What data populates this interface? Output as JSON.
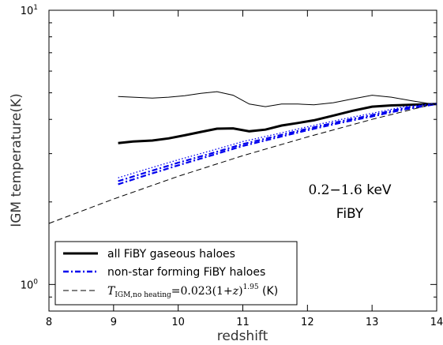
{
  "chart_data": {
    "type": "line",
    "xlabel": "redshift",
    "ylabel": "IGM temperature(K)",
    "xlim": [
      8,
      14
    ],
    "ylim": [
      0.8,
      10
    ],
    "yscale": "log",
    "x_ticks": [
      "8",
      "9",
      "10",
      "11",
      "12",
      "13",
      "14"
    ],
    "y_ticks": [
      {
        "value": 1,
        "base": "10",
        "exp": "0"
      },
      {
        "value": 10,
        "base": "10",
        "exp": "1"
      }
    ],
    "annotation": {
      "energy_num": "0.2",
      "energy_dash": "−",
      "energy_num2": "1.6",
      "energy_unit": " keV",
      "sim": "FiBY"
    },
    "series": [
      {
        "name": "all FiBY gaseous haloes",
        "color": "#000000",
        "style": "thick",
        "x": [
          9.07,
          9.3,
          9.6,
          9.85,
          10.1,
          10.35,
          10.6,
          10.85,
          11.1,
          11.35,
          11.6,
          11.85,
          12.1,
          12.4,
          12.7,
          13.0,
          13.3,
          13.6,
          13.85,
          14.0
        ],
        "y": [
          3.28,
          3.32,
          3.35,
          3.41,
          3.5,
          3.6,
          3.7,
          3.71,
          3.62,
          3.67,
          3.8,
          3.88,
          3.97,
          4.13,
          4.3,
          4.45,
          4.5,
          4.52,
          4.54,
          4.55
        ]
      },
      {
        "name": "",
        "color": "#000000",
        "style": "thin",
        "x": [
          9.07,
          9.3,
          9.6,
          9.85,
          10.1,
          10.35,
          10.6,
          10.85,
          11.1,
          11.35,
          11.6,
          11.85,
          12.1,
          12.4,
          12.7,
          13.0,
          13.3,
          13.6,
          13.85,
          14.0
        ],
        "y": [
          4.85,
          4.82,
          4.78,
          4.82,
          4.88,
          4.98,
          5.05,
          4.9,
          4.55,
          4.45,
          4.55,
          4.55,
          4.52,
          4.6,
          4.75,
          4.9,
          4.82,
          4.68,
          4.58,
          4.55
        ]
      },
      {
        "name": "non-star forming FiBY haloes",
        "color": "#0000ee",
        "style": "dashdot",
        "x": [
          9.07,
          9.5,
          10.0,
          10.5,
          11.0,
          11.5,
          12.0,
          12.5,
          13.0,
          13.5,
          14.0
        ],
        "y": [
          2.32,
          2.5,
          2.72,
          2.95,
          3.2,
          3.42,
          3.65,
          3.88,
          4.1,
          4.35,
          4.55
        ]
      },
      {
        "name": "",
        "color": "#0000ee",
        "style": "dashdot",
        "x": [
          9.07,
          9.5,
          10.0,
          10.5,
          11.0,
          11.5,
          12.0,
          12.5,
          13.0,
          13.5,
          14.0
        ],
        "y": [
          2.38,
          2.56,
          2.78,
          3.0,
          3.25,
          3.47,
          3.7,
          3.93,
          4.15,
          4.4,
          4.55
        ]
      },
      {
        "name": "",
        "color": "#0000ee",
        "style": "dotted",
        "x": [
          9.07,
          9.5,
          10.0,
          10.5,
          11.0,
          11.5,
          12.0,
          12.5,
          13.0,
          13.5,
          14.0
        ],
        "y": [
          2.45,
          2.63,
          2.85,
          3.07,
          3.32,
          3.53,
          3.76,
          3.99,
          4.21,
          4.45,
          4.58
        ]
      },
      {
        "name": "T_IGM,no heating = 0.023(1+z)^1.95 (K)",
        "color": "#000000",
        "style": "dashed",
        "x": [
          8.0,
          9.0,
          10.0,
          11.0,
          12.0,
          13.0,
          14.0
        ],
        "y": [
          1.67,
          2.05,
          2.48,
          2.95,
          3.45,
          4.0,
          4.58
        ]
      }
    ],
    "legend": {
      "position": "lower-left",
      "entries": [
        {
          "label": "all FiBY gaseous haloes",
          "style": "thick",
          "color": "#000000"
        },
        {
          "label": "non-star forming FiBY haloes",
          "style": "dashdot",
          "color": "#0000ee"
        },
        {
          "label_T": "T",
          "label_sub": "IGM,no heating",
          "label_eq": "=0.023(1+",
          "label_z": "z",
          "label_close": ")",
          "label_exp": "1.95",
          "label_unit": "  (K)",
          "style": "dashed",
          "color": "#000000"
        }
      ]
    }
  }
}
